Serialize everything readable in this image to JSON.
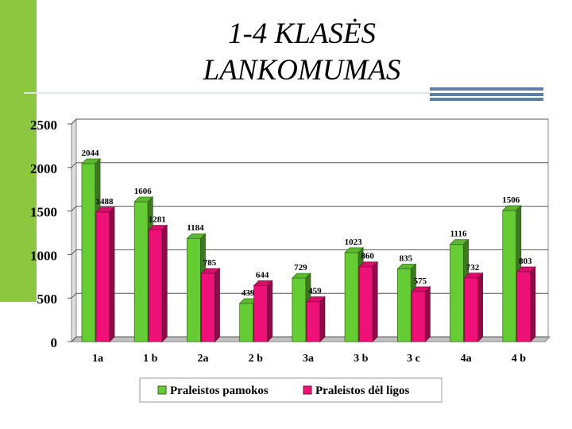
{
  "slide": {
    "title_line1": "1-4 KLASĖS",
    "title_line2": "LANKOMUMAS"
  },
  "chart_data": {
    "type": "bar",
    "categories": [
      "1a",
      "1 b",
      "2a",
      "2 b",
      "3a",
      "3 b",
      "3 c",
      "4a",
      "4 b"
    ],
    "series": [
      {
        "name": "Praleistos pamokos",
        "color": "#66cc33",
        "values": [
          2044,
          1606,
          1184,
          439,
          729,
          1023,
          835,
          1116,
          1506
        ]
      },
      {
        "name": "Praleistos dėl ligos",
        "color": "#ee1177",
        "values": [
          1488,
          1281,
          785,
          644,
          459,
          860,
          575,
          732,
          803
        ]
      }
    ],
    "y_ticks": [
      "0",
      "500",
      "1000",
      "1500",
      "2000",
      "2500"
    ],
    "ylim": [
      0,
      2500
    ],
    "grid": true,
    "legend_position": "bottom",
    "three_d": true
  }
}
